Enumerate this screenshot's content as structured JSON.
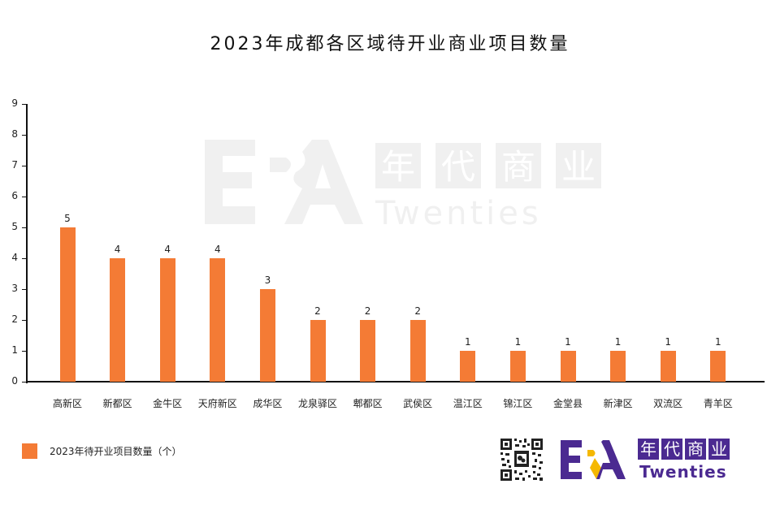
{
  "chart_data": {
    "type": "bar",
    "title": "2023年成都各区域待开业商业项目数量",
    "xlabel": "",
    "ylabel": "",
    "ylim": [
      0,
      9
    ],
    "yticks": [
      0,
      1,
      2,
      3,
      4,
      5,
      6,
      7,
      8,
      9
    ],
    "grid": false,
    "legend_position": "bottom-left",
    "categories": [
      "高新区",
      "新都区",
      "金牛区",
      "天府新区",
      "成华区",
      "龙泉驿区",
      "郫都区",
      "武侯区",
      "温江区",
      "锦江区",
      "金堂县",
      "新津区",
      "双流区",
      "青羊区"
    ],
    "series": [
      {
        "name": "2023年待开业项目数量（个）",
        "color": "#f47b35",
        "values": [
          5,
          4,
          4,
          4,
          3,
          2,
          2,
          2,
          1,
          1,
          1,
          1,
          1,
          1
        ]
      }
    ],
    "data_labels": [
      "5",
      "4",
      "4",
      "4",
      "3",
      "2",
      "2",
      "2",
      "1",
      "1",
      "1",
      "1",
      "1",
      "1"
    ]
  },
  "title": "2023年成都各区域待开业商业项目数量",
  "yticks": [
    "0",
    "1",
    "2",
    "3",
    "4",
    "5",
    "6",
    "7",
    "8",
    "9"
  ],
  "legend": {
    "label": "2023年待开业项目数量（个）",
    "color": "#f47b35"
  },
  "brand": {
    "logo_letters": "ERA",
    "cn_chars": [
      "年",
      "代",
      "商",
      "业"
    ],
    "en_text": "Twenties",
    "primary_color": "#4b2a91",
    "accent_color": "#f5b800"
  },
  "watermark": {
    "logo_letters": "ERA",
    "cn_chars": [
      "年",
      "代",
      "商",
      "业"
    ],
    "en_text": "Twenties"
  }
}
